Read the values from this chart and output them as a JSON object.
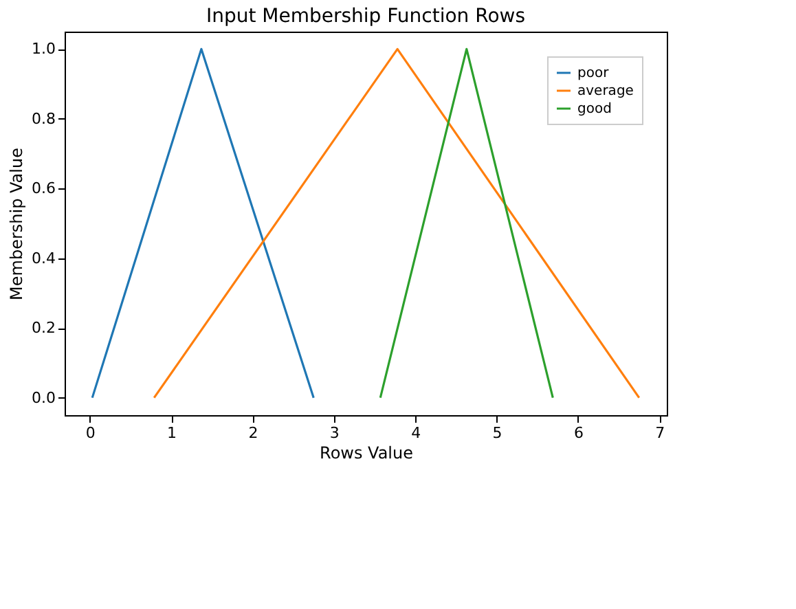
{
  "chart_data": {
    "type": "line",
    "title": "Input Membership Function Rows",
    "xlabel": "Rows Value",
    "ylabel": "Membership Value",
    "xlim": [
      -0.31,
      7.09
    ],
    "xticks": [
      0,
      1,
      2,
      3,
      4,
      5,
      6,
      7
    ],
    "ylim": [
      -0.05,
      1.05
    ],
    "yticks": [
      {
        "value": 0,
        "label": "0.0"
      },
      {
        "value": 0.2,
        "label": "0.2"
      },
      {
        "value": 0.4,
        "label": "0.4"
      },
      {
        "value": 0.6,
        "label": "0.6"
      },
      {
        "value": 0.8,
        "label": "0.8"
      },
      {
        "value": 1,
        "label": "1.0"
      }
    ],
    "legend": "top right",
    "grid": false,
    "series": [
      {
        "name": "poor",
        "color": "#1f77b4",
        "x": [
          0.03,
          1.37,
          2.75
        ],
        "values": [
          0,
          1,
          0
        ]
      },
      {
        "name": "average",
        "color": "#ff7f0e",
        "x": [
          0.79,
          3.78,
          6.75
        ],
        "values": [
          0,
          1,
          0
        ]
      },
      {
        "name": "good",
        "color": "#2ca02c",
        "x": [
          3.57,
          4.63,
          5.69
        ],
        "values": [
          0,
          1,
          0
        ]
      }
    ]
  }
}
